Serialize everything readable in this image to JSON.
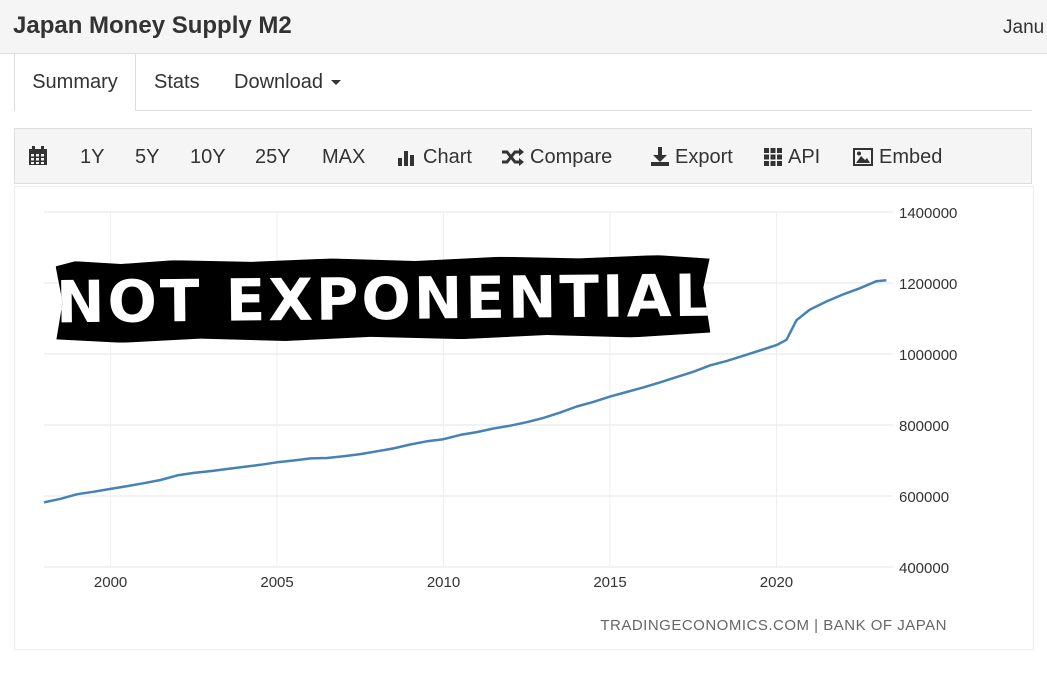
{
  "header": {
    "title": "Japan Money Supply M2",
    "date_partial": "Janu"
  },
  "tabs": [
    {
      "label": "Summary",
      "active": true
    },
    {
      "label": "Stats",
      "active": false
    },
    {
      "label": "Download",
      "active": false
    }
  ],
  "toolbar": {
    "calendar_icon": "calendar-icon",
    "ranges": [
      "1Y",
      "5Y",
      "10Y",
      "25Y",
      "MAX"
    ],
    "chart_label": "Chart",
    "compare_label": "Compare",
    "export_label": "Export",
    "api_label": "API",
    "embed_label": "Embed"
  },
  "overlay_text": "NOT EXPONENTIAL..?",
  "chart_data": {
    "type": "line",
    "title": "",
    "xlabel": "",
    "ylabel": "",
    "x_ticks": [
      2000,
      2005,
      2010,
      2015,
      2020
    ],
    "y_ticks": [
      400000,
      600000,
      800000,
      1000000,
      1200000,
      1400000
    ],
    "ylim": [
      400000,
      1400000
    ],
    "xlim": [
      1998.0,
      2023.5
    ],
    "grid": true,
    "series_color": "#4682b4",
    "series": [
      {
        "x": [
          1998.0,
          1998.5,
          1999.0,
          1999.5,
          2000.0,
          2000.5,
          2001.0,
          2001.5,
          2002.0,
          2002.5,
          2003.0,
          2003.5,
          2004.0,
          2004.5,
          2005.0,
          2005.5,
          2006.0,
          2006.5,
          2007.0,
          2007.5,
          2008.0,
          2008.5,
          2009.0,
          2009.5,
          2010.0,
          2010.5,
          2011.0,
          2011.5,
          2012.0,
          2012.5,
          2013.0,
          2013.5,
          2014.0,
          2014.5,
          2015.0,
          2015.5,
          2016.0,
          2016.5,
          2017.0,
          2017.5,
          2018.0,
          2018.5,
          2019.0,
          2019.5,
          2020.0,
          2020.3,
          2020.6,
          2021.0,
          2021.5,
          2022.0,
          2022.5,
          2023.0,
          2023.3
        ],
        "values": [
          582000,
          592000,
          605000,
          612000,
          620000,
          628000,
          636000,
          645000,
          658000,
          665000,
          670000,
          676000,
          682000,
          688000,
          695000,
          700000,
          706000,
          707000,
          712000,
          718000,
          726000,
          734000,
          745000,
          754000,
          760000,
          772000,
          780000,
          790000,
          798000,
          808000,
          820000,
          835000,
          852000,
          865000,
          880000,
          893000,
          906000,
          920000,
          935000,
          950000,
          968000,
          980000,
          995000,
          1010000,
          1025000,
          1040000,
          1095000,
          1125000,
          1148000,
          1168000,
          1185000,
          1205000,
          1208000
        ]
      }
    ],
    "source_text": "TRADINGECONOMICS.COM  |  BANK OF JAPAN"
  }
}
